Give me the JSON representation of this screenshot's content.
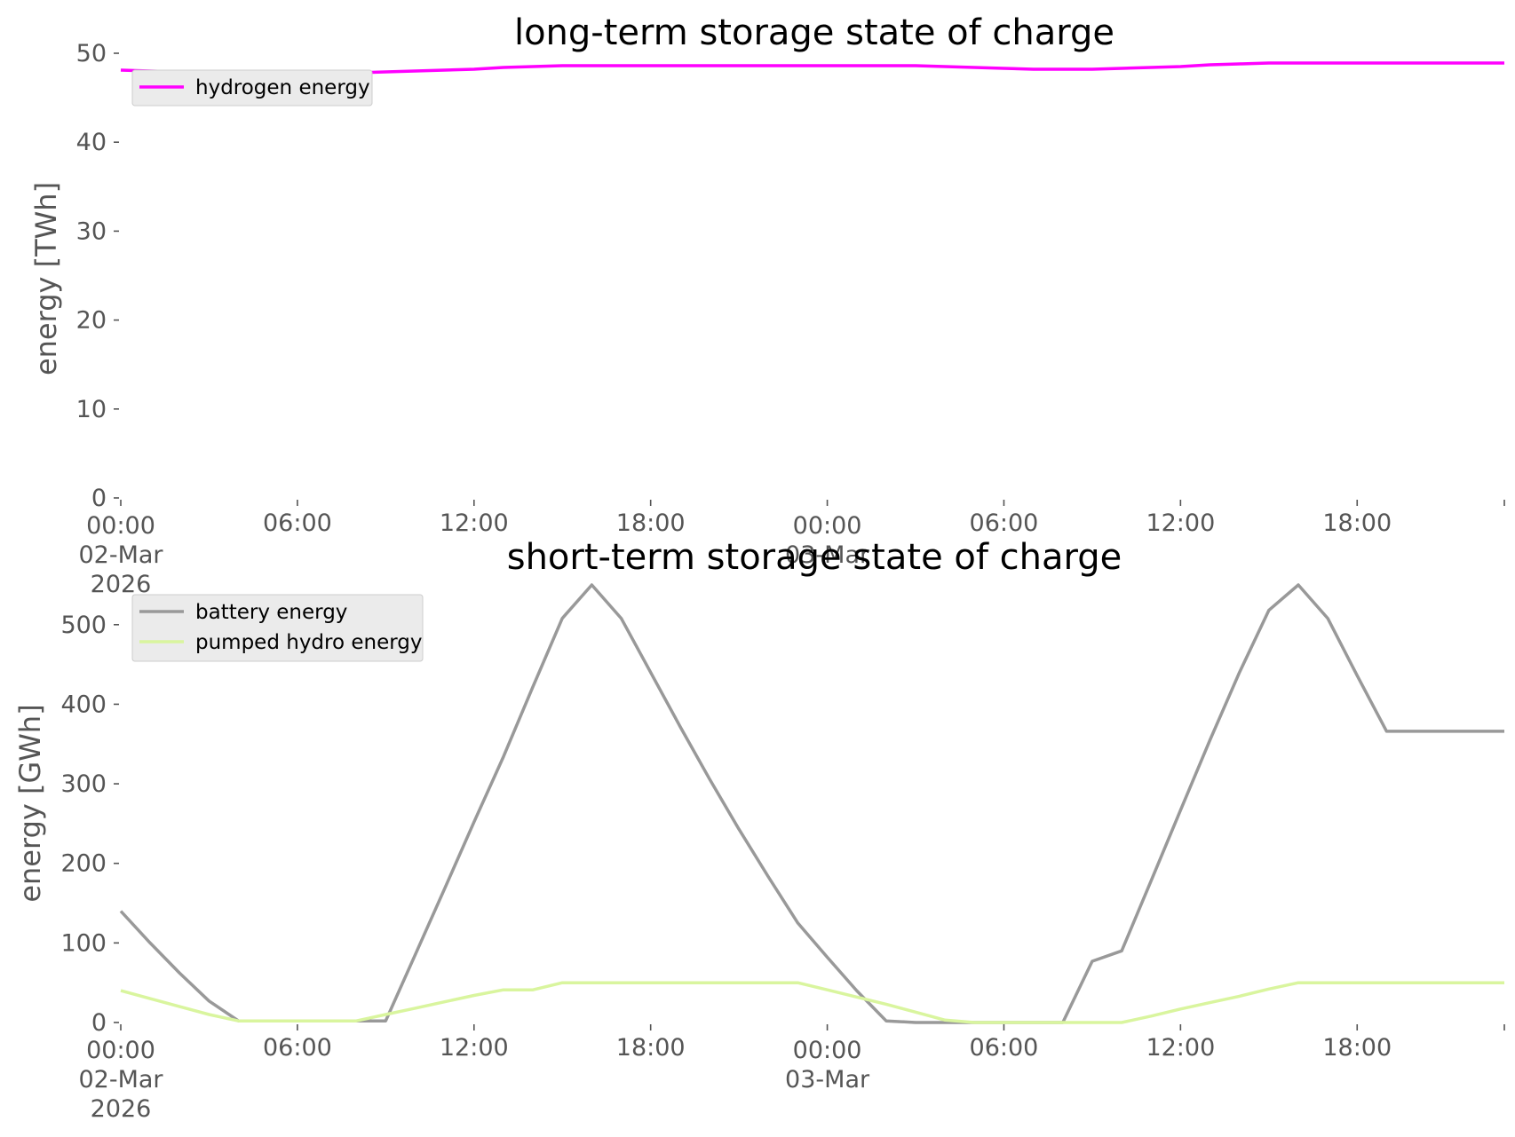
{
  "chart_data": [
    {
      "type": "line",
      "title": "long-term storage state of charge",
      "xlabel": "",
      "ylabel": "energy [TWh]",
      "ylim": [
        0,
        50
      ],
      "yticks": [
        0,
        10,
        20,
        30,
        40,
        50
      ],
      "xlim": [
        "2026-03-02T00:00",
        "2026-03-03T23:00"
      ],
      "xticks": [
        {
          "lines": [
            "00:00",
            "02-Mar",
            "2026"
          ]
        },
        {
          "lines": [
            "06:00"
          ]
        },
        {
          "lines": [
            "12:00"
          ]
        },
        {
          "lines": [
            "18:00"
          ]
        },
        {
          "lines": [
            "00:00",
            "03-Mar"
          ]
        },
        {
          "lines": [
            "06:00"
          ]
        },
        {
          "lines": [
            "12:00"
          ]
        },
        {
          "lines": [
            "18:00"
          ]
        }
      ],
      "grid": false,
      "legend": "top-left",
      "x": [
        "2026-03-02T00:00",
        "2026-03-02T01:00",
        "2026-03-02T02:00",
        "2026-03-02T03:00",
        "2026-03-02T04:00",
        "2026-03-02T05:00",
        "2026-03-02T06:00",
        "2026-03-02T07:00",
        "2026-03-02T08:00",
        "2026-03-02T09:00",
        "2026-03-02T10:00",
        "2026-03-02T11:00",
        "2026-03-02T12:00",
        "2026-03-02T13:00",
        "2026-03-02T14:00",
        "2026-03-02T15:00",
        "2026-03-02T16:00",
        "2026-03-02T17:00",
        "2026-03-02T18:00",
        "2026-03-02T19:00",
        "2026-03-02T20:00",
        "2026-03-02T21:00",
        "2026-03-02T22:00",
        "2026-03-02T23:00",
        "2026-03-03T00:00",
        "2026-03-03T01:00",
        "2026-03-03T02:00",
        "2026-03-03T03:00",
        "2026-03-03T04:00",
        "2026-03-03T05:00",
        "2026-03-03T06:00",
        "2026-03-03T07:00",
        "2026-03-03T08:00",
        "2026-03-03T09:00",
        "2026-03-03T10:00",
        "2026-03-03T11:00",
        "2026-03-03T12:00",
        "2026-03-03T13:00",
        "2026-03-03T14:00",
        "2026-03-03T15:00",
        "2026-03-03T16:00",
        "2026-03-03T17:00",
        "2026-03-03T18:00",
        "2026-03-03T19:00",
        "2026-03-03T20:00",
        "2026-03-03T21:00",
        "2026-03-03T22:00",
        "2026-03-03T23:00"
      ],
      "series": [
        {
          "name": "hydrogen energy",
          "color": "#ff00ff",
          "values": [
            48.1,
            48.0,
            47.9,
            47.8,
            47.8,
            47.8,
            47.8,
            47.8,
            47.8,
            47.9,
            48.0,
            48.1,
            48.2,
            48.4,
            48.5,
            48.6,
            48.6,
            48.6,
            48.6,
            48.6,
            48.6,
            48.6,
            48.6,
            48.6,
            48.6,
            48.6,
            48.6,
            48.6,
            48.5,
            48.4,
            48.3,
            48.2,
            48.2,
            48.2,
            48.3,
            48.4,
            48.5,
            48.7,
            48.8,
            48.9,
            48.9,
            48.9,
            48.9,
            48.9,
            48.9,
            48.9,
            48.9,
            48.9
          ]
        }
      ]
    },
    {
      "type": "line",
      "title": "short-term storage state of charge",
      "xlabel": "",
      "ylabel": "energy [GWh]",
      "ylim": [
        0,
        560
      ],
      "yticks": [
        0,
        100,
        200,
        300,
        400,
        500
      ],
      "xlim": [
        "2026-03-02T00:00",
        "2026-03-03T23:00"
      ],
      "xticks": [
        {
          "lines": [
            "00:00",
            "02-Mar",
            "2026"
          ]
        },
        {
          "lines": [
            "06:00"
          ]
        },
        {
          "lines": [
            "12:00"
          ]
        },
        {
          "lines": [
            "18:00"
          ]
        },
        {
          "lines": [
            "00:00",
            "03-Mar"
          ]
        },
        {
          "lines": [
            "06:00"
          ]
        },
        {
          "lines": [
            "12:00"
          ]
        },
        {
          "lines": [
            "18:00"
          ]
        }
      ],
      "grid": false,
      "legend": "top-left",
      "x": [
        "2026-03-02T00:00",
        "2026-03-02T01:00",
        "2026-03-02T02:00",
        "2026-03-02T03:00",
        "2026-03-02T04:00",
        "2026-03-02T05:00",
        "2026-03-02T06:00",
        "2026-03-02T07:00",
        "2026-03-02T08:00",
        "2026-03-02T09:00",
        "2026-03-02T10:00",
        "2026-03-02T11:00",
        "2026-03-02T12:00",
        "2026-03-02T13:00",
        "2026-03-02T14:00",
        "2026-03-02T15:00",
        "2026-03-02T16:00",
        "2026-03-02T17:00",
        "2026-03-02T18:00",
        "2026-03-02T19:00",
        "2026-03-02T20:00",
        "2026-03-02T21:00",
        "2026-03-02T22:00",
        "2026-03-02T23:00",
        "2026-03-03T00:00",
        "2026-03-03T01:00",
        "2026-03-03T02:00",
        "2026-03-03T03:00",
        "2026-03-03T04:00",
        "2026-03-03T05:00",
        "2026-03-03T06:00",
        "2026-03-03T07:00",
        "2026-03-03T08:00",
        "2026-03-03T09:00",
        "2026-03-03T10:00",
        "2026-03-03T11:00",
        "2026-03-03T12:00",
        "2026-03-03T13:00",
        "2026-03-03T14:00",
        "2026-03-03T15:00",
        "2026-03-03T16:00",
        "2026-03-03T17:00",
        "2026-03-03T18:00",
        "2026-03-03T19:00",
        "2026-03-03T20:00",
        "2026-03-03T21:00",
        "2026-03-03T22:00",
        "2026-03-03T23:00"
      ],
      "series": [
        {
          "name": "battery energy",
          "color": "#999999",
          "values": [
            140,
            100,
            62,
            27,
            2,
            2,
            2,
            2,
            2,
            2,
            85,
            168,
            252,
            334,
            422,
            508,
            550,
            508,
            440,
            372,
            306,
            243,
            183,
            125,
            82,
            40,
            2,
            0,
            0,
            0,
            0,
            0,
            0,
            77,
            90,
            178,
            267,
            355,
            440,
            518,
            550,
            508,
            436,
            366,
            366,
            366,
            366,
            366
          ]
        },
        {
          "name": "pumped hydro energy",
          "color": "#d9f59e",
          "values": [
            40,
            30,
            20,
            10,
            2,
            2,
            2,
            2,
            2,
            10,
            18,
            26,
            34,
            41,
            41,
            50,
            50,
            50,
            50,
            50,
            50,
            50,
            50,
            50,
            41,
            32,
            23,
            13,
            3,
            0,
            0,
            0,
            0,
            0,
            0,
            8,
            17,
            25,
            33,
            42,
            50,
            50,
            50,
            50,
            50,
            50,
            50,
            50
          ]
        }
      ]
    }
  ]
}
